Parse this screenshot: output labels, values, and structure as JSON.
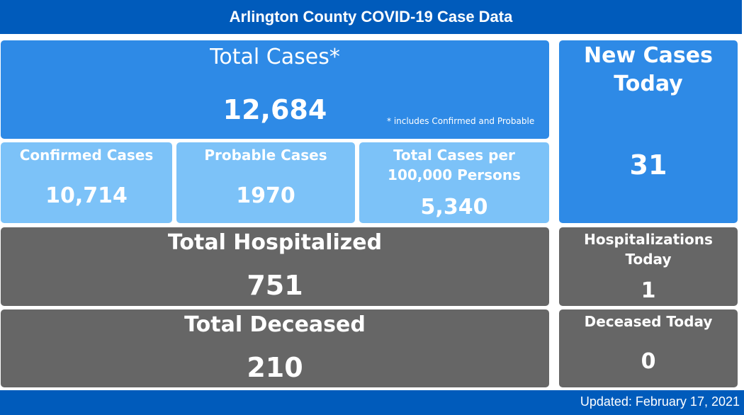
{
  "header": {
    "title": "Arlington County COVID-19 Case Data"
  },
  "total_cases": {
    "label": "Total Cases*",
    "value": "12,684",
    "note": "* includes Confirmed and Probable"
  },
  "confirmed": {
    "label": "Confirmed Cases",
    "value": "10,714"
  },
  "probable": {
    "label": "Probable Cases",
    "value": "1970"
  },
  "per_100k": {
    "label_line1": "Total Cases per",
    "label_line2": "100,000 Persons",
    "value": "5,340"
  },
  "new_cases": {
    "label_line1": "New Cases",
    "label_line2": "Today",
    "value": "31"
  },
  "hospitalized": {
    "label": "Total Hospitalized",
    "value": "751"
  },
  "hosp_today": {
    "label_line1": "Hospitalizations",
    "label_line2": "Today",
    "value": "1"
  },
  "deceased": {
    "label": "Total Deceased",
    "value": "210"
  },
  "deceased_today": {
    "label": "Deceased Today",
    "value": "0"
  },
  "footer": {
    "updated": "Updated: February 17, 2021"
  }
}
